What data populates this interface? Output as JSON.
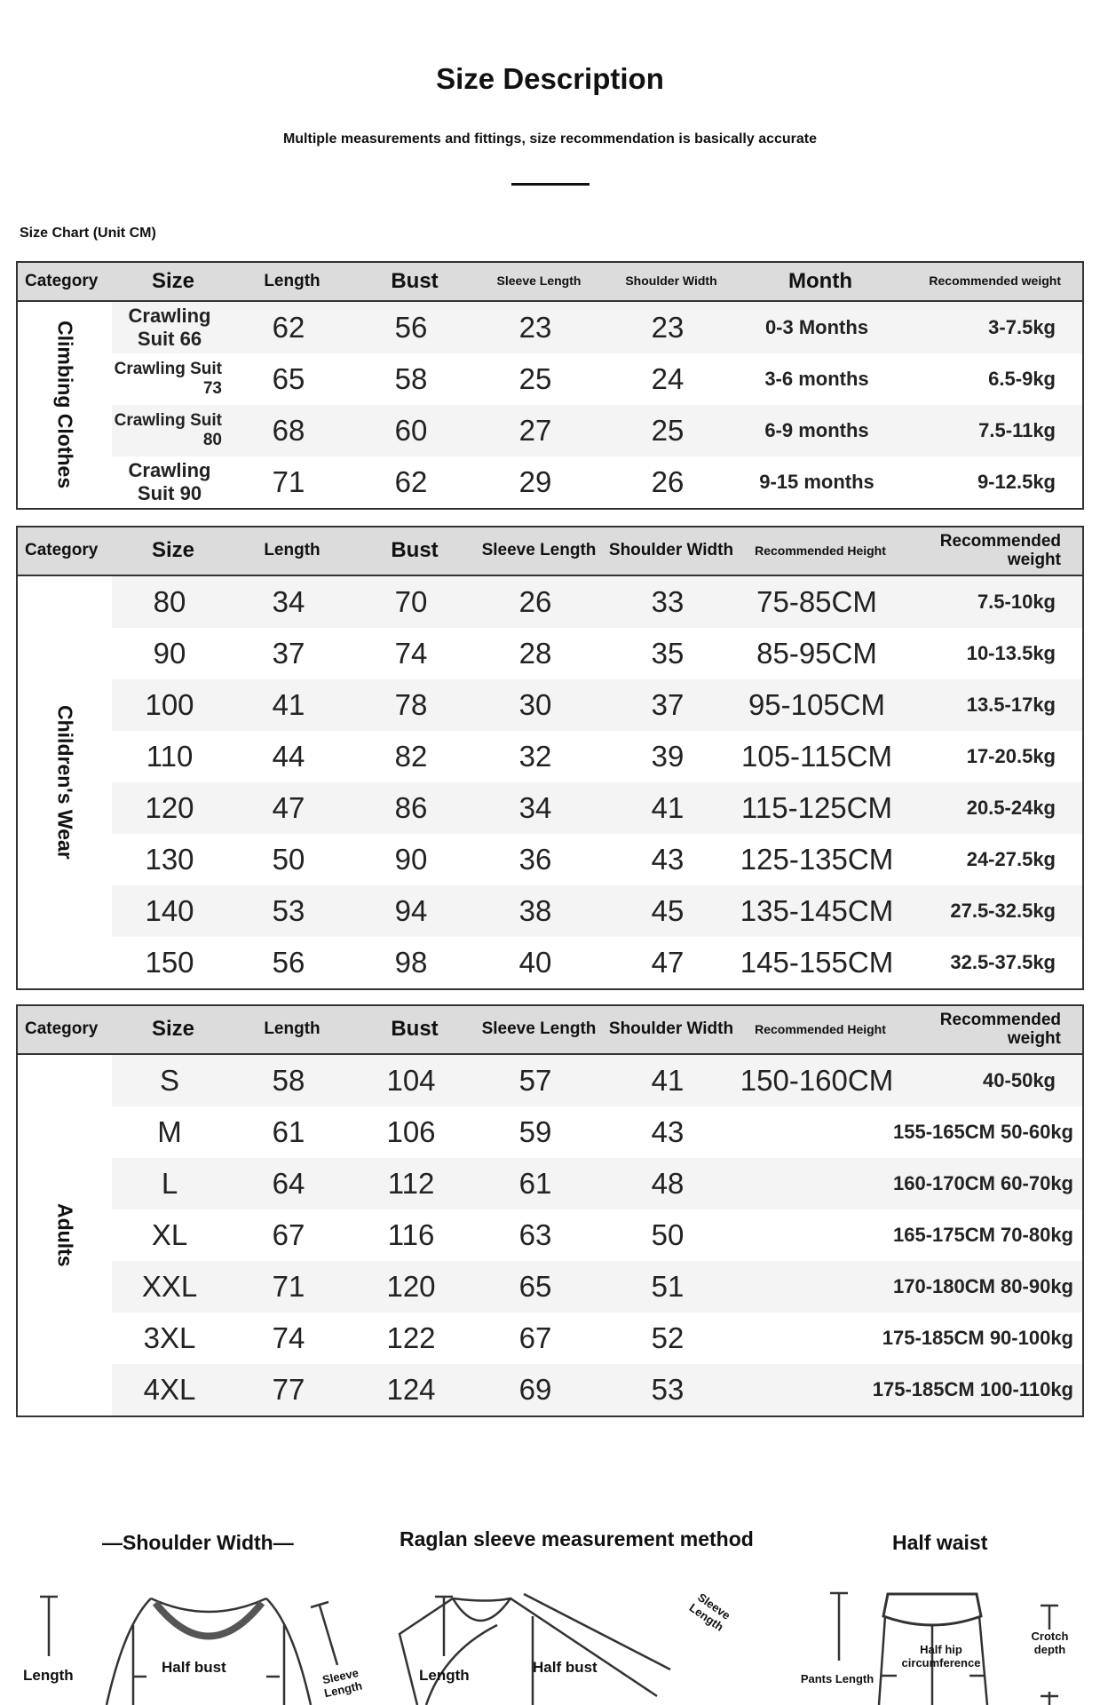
{
  "header": {
    "title": "Size Description",
    "subtitle": "Multiple measurements and fittings, size recommendation is basically accurate",
    "chart_label": "Size Chart (Unit CM)"
  },
  "table1": {
    "headers": [
      "Category",
      "Size",
      "Length",
      "Bust",
      "Sleeve Length",
      "Shoulder Width",
      "Month",
      "Recommended weight"
    ],
    "category": "Climbing Clothes",
    "rows": [
      [
        "Crawling Suit 66",
        "62",
        "56",
        "23",
        "23",
        "0-3 Months",
        "3-7.5kg"
      ],
      [
        "Crawling Suit 73",
        "65",
        "58",
        "25",
        "24",
        "3-6 months",
        "6.5-9kg"
      ],
      [
        "Crawling Suit 80",
        "68",
        "60",
        "27",
        "25",
        "6-9 months",
        "7.5-11kg"
      ],
      [
        "Crawling Suit 90",
        "71",
        "62",
        "29",
        "26",
        "9-15 months",
        "9-12.5kg"
      ]
    ]
  },
  "table2": {
    "headers": [
      "Category",
      "Size",
      "Length",
      "Bust",
      "Sleeve Length",
      "Shoulder Width",
      "Recommended Height",
      "Recommended weight"
    ],
    "category": "Children's Wear",
    "rows": [
      [
        "80",
        "34",
        "70",
        "26",
        "33",
        "75-85CM",
        "7.5-10kg"
      ],
      [
        "90",
        "37",
        "74",
        "28",
        "35",
        "85-95CM",
        "10-13.5kg"
      ],
      [
        "100",
        "41",
        "78",
        "30",
        "37",
        "95-105CM",
        "13.5-17kg"
      ],
      [
        "110",
        "44",
        "82",
        "32",
        "39",
        "105-115CM",
        "17-20.5kg"
      ],
      [
        "120",
        "47",
        "86",
        "34",
        "41",
        "115-125CM",
        "20.5-24kg"
      ],
      [
        "130",
        "50",
        "90",
        "36",
        "43",
        "125-135CM",
        "24-27.5kg"
      ],
      [
        "140",
        "53",
        "94",
        "38",
        "45",
        "135-145CM",
        "27.5-32.5kg"
      ],
      [
        "150",
        "56",
        "98",
        "40",
        "47",
        "145-155CM",
        "32.5-37.5kg"
      ]
    ]
  },
  "table3": {
    "headers": [
      "Category",
      "Size",
      "Length",
      "Bust",
      "Sleeve Length",
      "Shoulder Width",
      "Recommended Height",
      "Recommended weight"
    ],
    "category": "Adults",
    "first_row": [
      "S",
      "58",
      "104",
      "57",
      "41",
      "150-160CM",
      "40-50kg"
    ],
    "rows": [
      [
        "M",
        "61",
        "106",
        "59",
        "43",
        "155-165CM 50-60kg"
      ],
      [
        "L",
        "64",
        "112",
        "61",
        "48",
        "160-170CM 60-70kg"
      ],
      [
        "XL",
        "67",
        "116",
        "63",
        "50",
        "165-175CM 70-80kg"
      ],
      [
        "XXL",
        "71",
        "120",
        "65",
        "51",
        "170-180CM 80-90kg"
      ],
      [
        "3XL",
        "74",
        "122",
        "67",
        "52",
        "175-185CM 90-100kg"
      ],
      [
        "4XL",
        "77",
        "124",
        "69",
        "53",
        "175-185CM 100-110kg"
      ]
    ]
  },
  "diagrams": {
    "shoulder": {
      "title": "—Shoulder Width—",
      "length": "Length",
      "half_bust": "Half bust",
      "sleeve": "Sleeve Length"
    },
    "raglan": {
      "title": "Raglan sleeve measurement method",
      "length": "Length",
      "half_bust": "Half bust",
      "sleeve": "Sleeve Length"
    },
    "pants": {
      "title": "Half waist",
      "pants_length": "Pants Length",
      "half_hip": "Half hip circumference",
      "crotch": "Crotch depth"
    }
  }
}
